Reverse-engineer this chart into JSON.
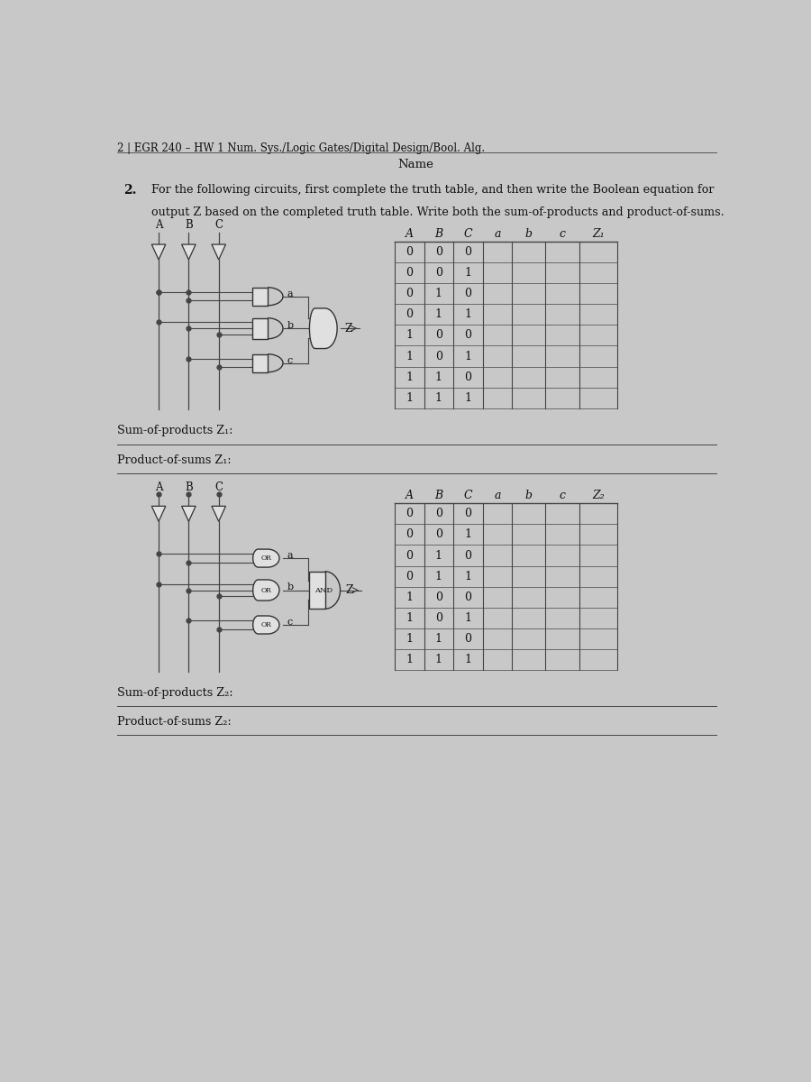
{
  "page_header": "2 | EGR 240 – HW 1 Num. Sys./Logic Gates/Digital Design/Bool. Alg.",
  "name_label": "Name",
  "problem_num": "2.",
  "problem_line1": "For the following circuits, first complete the truth table, and then write the Boolean equation for",
  "problem_line2": "output Z based on the completed truth table. Write both the sum-of-products and product-of-sums.",
  "circuit1_inputs": [
    "A",
    "B",
    "C"
  ],
  "table1_headers": [
    "A",
    "B",
    "C",
    "a",
    "b",
    "c",
    "Z₁"
  ],
  "table1_rows": [
    [
      "0",
      "0",
      "0",
      "",
      "",
      "",
      ""
    ],
    [
      "0",
      "0",
      "1",
      "",
      "",
      "",
      ""
    ],
    [
      "0",
      "1",
      "0",
      "",
      "",
      "",
      ""
    ],
    [
      "0",
      "1",
      "1",
      "",
      "",
      "",
      ""
    ],
    [
      "1",
      "0",
      "0",
      "",
      "",
      "",
      ""
    ],
    [
      "1",
      "0",
      "1",
      "",
      "",
      "",
      ""
    ],
    [
      "1",
      "1",
      "0",
      "",
      "",
      "",
      ""
    ],
    [
      "1",
      "1",
      "1",
      "",
      "",
      "",
      ""
    ]
  ],
  "sop1_label": "Sum-of-products Z₁:",
  "pos1_label": "Product-of-sums Z₁:",
  "circuit2_inputs": [
    "A",
    "B",
    "C"
  ],
  "table2_headers": [
    "A",
    "B",
    "C",
    "a",
    "b",
    "c",
    "Z₂"
  ],
  "table2_rows": [
    [
      "0",
      "0",
      "0",
      "",
      "",
      "",
      ""
    ],
    [
      "0",
      "0",
      "1",
      "",
      "",
      "",
      ""
    ],
    [
      "0",
      "1",
      "0",
      "",
      "",
      "",
      ""
    ],
    [
      "0",
      "1",
      "1",
      "",
      "",
      "",
      ""
    ],
    [
      "1",
      "0",
      "0",
      "",
      "",
      "",
      ""
    ],
    [
      "1",
      "0",
      "1",
      "",
      "",
      "",
      ""
    ],
    [
      "1",
      "1",
      "0",
      "",
      "",
      "",
      ""
    ],
    [
      "1",
      "1",
      "1",
      "",
      "",
      "",
      ""
    ]
  ],
  "sop2_label": "Sum-of-products Z₂:",
  "pos2_label": "Product-of-sums Z₂:",
  "bg_color": "#c8c8c8",
  "text_color": "#111111",
  "line_color": "#444444",
  "gate_fill": "#e0e0e0"
}
